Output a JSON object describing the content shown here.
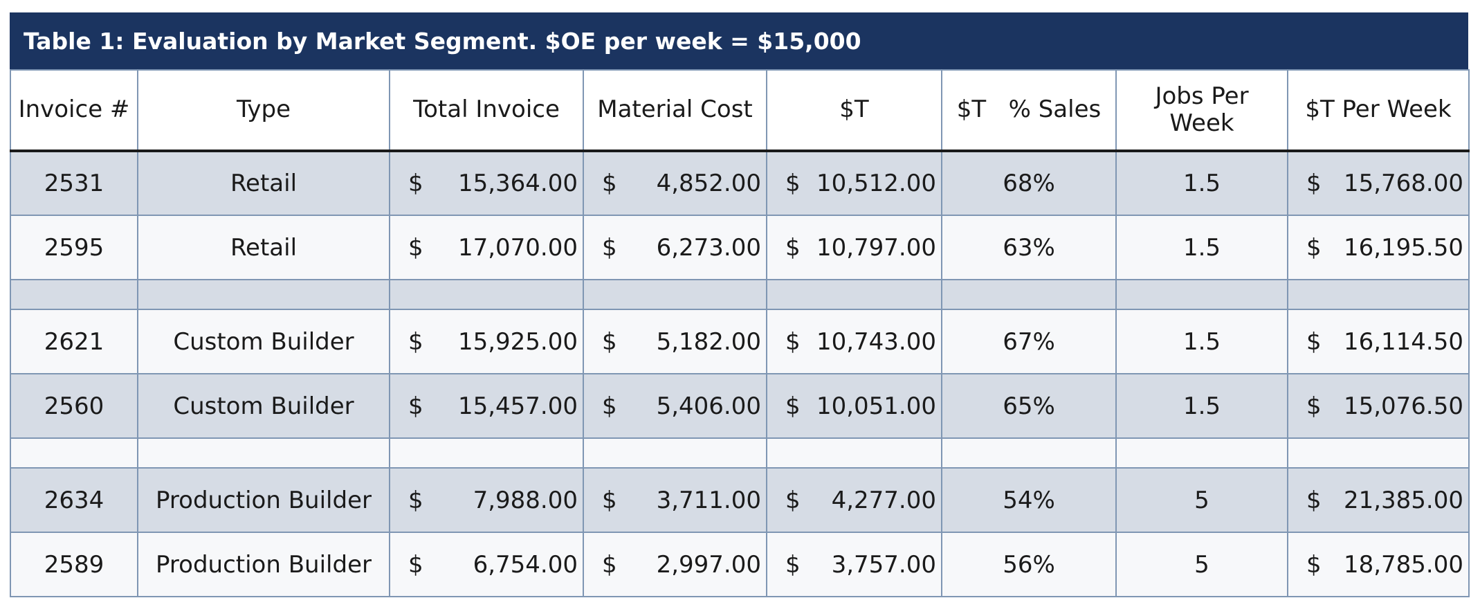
{
  "table": {
    "title": "Table 1:  Evaluation by Market Segment. $OE per week = $15,000",
    "headers": [
      "Invoice #",
      "Type",
      "Total Invoice",
      "Material Cost",
      "$T",
      "$T   % Sales",
      "Jobs Per Week",
      "$T Per Week"
    ],
    "currency_symbol": "$",
    "colors": {
      "title_bar": "#1b3460",
      "shaded_row": "#d6dce5",
      "plain_row": "#f7f8fa",
      "grid": "#7f96b3"
    },
    "rows": [
      {
        "kind": "data",
        "shade": "shade",
        "invoice": "2531",
        "type": "Retail",
        "total_invoice": "15,364.00",
        "material_cost": "4,852.00",
        "t": "10,512.00",
        "t_pct_sales": "68%",
        "jobs_per_week": "1.5",
        "t_per_week": "15,768.00"
      },
      {
        "kind": "data",
        "shade": "plain",
        "invoice": "2595",
        "type": "Retail",
        "total_invoice": "17,070.00",
        "material_cost": "6,273.00",
        "t": "10,797.00",
        "t_pct_sales": "63%",
        "jobs_per_week": "1.5",
        "t_per_week": "16,195.50"
      },
      {
        "kind": "spacer",
        "shade": "shade"
      },
      {
        "kind": "data",
        "shade": "plain",
        "invoice": "2621",
        "type": "Custom Builder",
        "total_invoice": "15,925.00",
        "material_cost": "5,182.00",
        "t": "10,743.00",
        "t_pct_sales": "67%",
        "jobs_per_week": "1.5",
        "t_per_week": "16,114.50"
      },
      {
        "kind": "data",
        "shade": "shade",
        "invoice": "2560",
        "type": "Custom Builder",
        "total_invoice": "15,457.00",
        "material_cost": "5,406.00",
        "t": "10,051.00",
        "t_pct_sales": "65%",
        "jobs_per_week": "1.5",
        "t_per_week": "15,076.50"
      },
      {
        "kind": "spacer",
        "shade": "plain"
      },
      {
        "kind": "data",
        "shade": "shade",
        "invoice": "2634",
        "type": "Production Builder",
        "total_invoice": "7,988.00",
        "material_cost": "3,711.00",
        "t": "4,277.00",
        "t_pct_sales": "54%",
        "jobs_per_week": "5",
        "t_per_week": "21,385.00"
      },
      {
        "kind": "data",
        "shade": "plain",
        "invoice": "2589",
        "type": "Production Builder",
        "total_invoice": "6,754.00",
        "material_cost": "2,997.00",
        "t": "3,757.00",
        "t_pct_sales": "56%",
        "jobs_per_week": "5",
        "t_per_week": "18,785.00"
      }
    ]
  }
}
